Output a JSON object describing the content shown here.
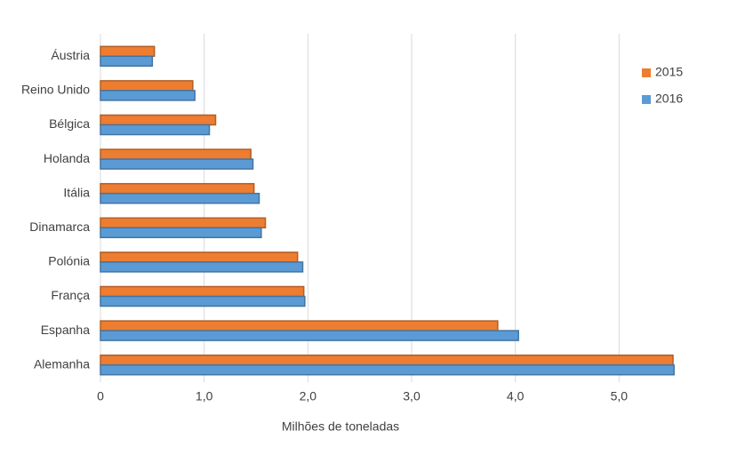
{
  "chart_data": {
    "type": "hbar",
    "x_label": "Milhões de toneladas",
    "categories": [
      "Áustria",
      "Reino Unido",
      "Bélgica",
      "Holanda",
      "Itália",
      "Dinamarca",
      "Polónia",
      "França",
      "Espanha",
      "Alemanha"
    ],
    "series": [
      {
        "name": "2015",
        "color": "#ed7d31",
        "values": [
          0.52,
          0.89,
          1.11,
          1.45,
          1.48,
          1.59,
          1.9,
          1.96,
          3.83,
          5.52
        ]
      },
      {
        "name": "2016",
        "color": "#5b9bd5",
        "values": [
          0.5,
          0.91,
          1.05,
          1.47,
          1.53,
          1.55,
          1.95,
          1.97,
          4.03,
          5.53
        ]
      }
    ],
    "xlim": [
      0,
      6
    ],
    "xticks": [
      0,
      {
        "value": 1,
        "label": "1,0"
      },
      {
        "value": 2,
        "label": "2,0"
      },
      {
        "value": 3,
        "label": "3,0"
      },
      {
        "value": 4,
        "label": "4,0"
      },
      {
        "value": 5,
        "label": "5,0"
      }
    ],
    "grid": true,
    "legend": "top-right"
  }
}
